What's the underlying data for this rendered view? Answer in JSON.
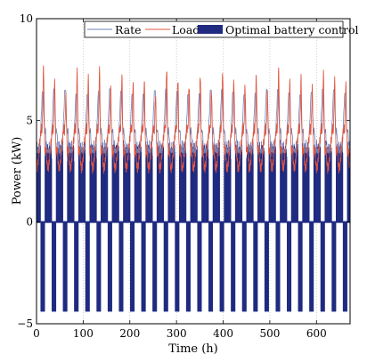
{
  "chart_data": {
    "type": "line",
    "title": "",
    "xlabel": "Time (h)",
    "ylabel": "Power (kW)",
    "xlim": [
      0,
      672
    ],
    "ylim": [
      -5,
      10
    ],
    "x_ticks": [
      0,
      100,
      200,
      300,
      400,
      500,
      600
    ],
    "y_ticks": [
      -5,
      0,
      5,
      10
    ],
    "x_tick_labels": [
      "0",
      "100",
      "200",
      "300",
      "400",
      "500",
      "600"
    ],
    "y_tick_labels": [
      "−5",
      "0",
      "5",
      "10"
    ],
    "grid": "dotted",
    "legend_position": "top-right",
    "period_hours": 24,
    "days": 28,
    "series": [
      {
        "name": "Rate",
        "color": "#6f82b8",
        "style": "thin-line",
        "approx_daily_min": 3.5,
        "approx_daily_max": 6.4,
        "approx_peak_time_of_day_h": 14
      },
      {
        "name": "Load",
        "color": "#e0553f",
        "style": "thin-line",
        "approx_daily_min": 2.6,
        "approx_daily_peaks": [
          8.6,
          7.9,
          7.2,
          8.4,
          8.1,
          8.5,
          7.6,
          8.2,
          7.9,
          8.0,
          7.3,
          8.6,
          8.1,
          7.8,
          8.3,
          7.5,
          8.4,
          8.0,
          7.7,
          8.2,
          7.4,
          8.5,
          7.9,
          8.1,
          7.6,
          8.3,
          8.0,
          7.8
        ],
        "approx_peak_time_of_day_h": 15
      },
      {
        "name": "Optimal battery control",
        "color": "#1f2a80",
        "style": "filled-area",
        "approx_charge_level": 3.5,
        "approx_discharge_level": -4.4,
        "approx_discharge_hours_per_day": 9
      }
    ]
  }
}
